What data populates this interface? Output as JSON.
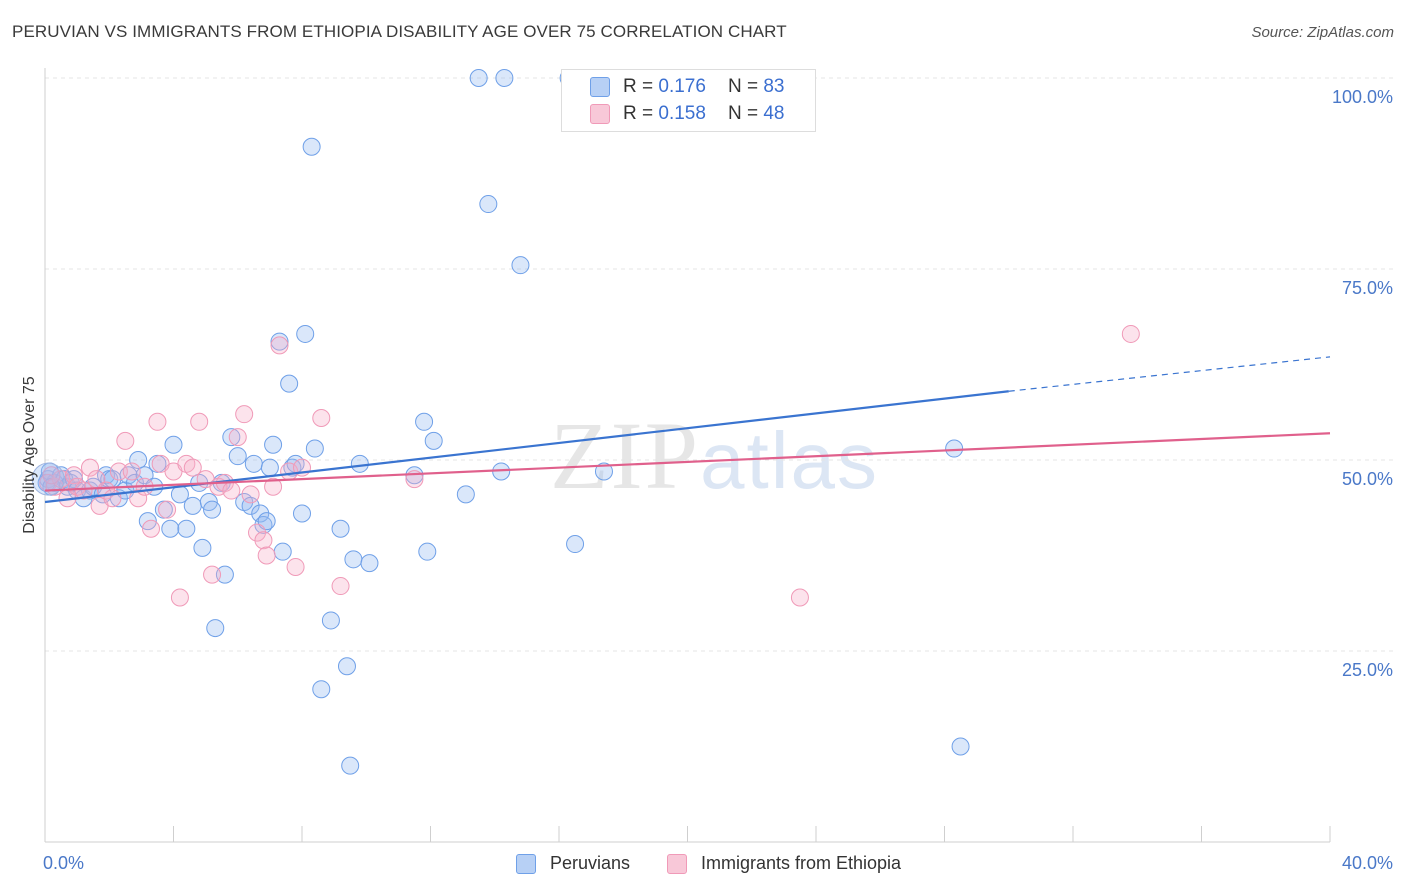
{
  "title": "PERUVIAN VS IMMIGRANTS FROM ETHIOPIA DISABILITY AGE OVER 75 CORRELATION CHART",
  "source": "Source: ZipAtlas.com",
  "watermark": {
    "zip": "ZIP",
    "atlas": "atlas"
  },
  "legend": {
    "rows": [
      {
        "r_label": "R =",
        "r_value": "0.176",
        "n_label": "N =",
        "n_value": "83",
        "color": "#6fa0e8",
        "fill": "#b7d0f5"
      },
      {
        "r_label": "R =",
        "r_value": "0.158",
        "n_label": "N =",
        "n_value": "48",
        "color": "#f09ab8",
        "fill": "#f8c8d8"
      }
    ]
  },
  "bottom_legend": [
    {
      "label": "Peruvians",
      "color": "#6fa0e8",
      "fill": "#b7d0f5"
    },
    {
      "label": "Immigrants from Ethiopia",
      "color": "#f09ab8",
      "fill": "#f8c8d8"
    }
  ],
  "chart_data": {
    "type": "scatter",
    "title": "PERUVIAN VS IMMIGRANTS FROM ETHIOPIA DISABILITY AGE OVER 75 CORRELATION CHART",
    "xlabel": "",
    "ylabel": "Disability Age Over 75",
    "xlim": [
      0,
      40
    ],
    "ylim": [
      0,
      100
    ],
    "x_tick_labels": [
      "0.0%",
      "40.0%"
    ],
    "y_tick_labels": [
      "100.0%",
      "75.0%",
      "50.0%",
      "25.0%"
    ],
    "y_ticks": [
      100,
      75,
      50,
      25
    ],
    "grid": true,
    "legend_position": "top-center",
    "series": [
      {
        "name": "Peruvians",
        "color": "#3a74d0",
        "trend": {
          "x0": 0,
          "y0": 44.5,
          "x1": 30,
          "y1": 59,
          "x_dash_end": 40,
          "y_dash_end": 63.5
        },
        "points": [
          [
            0.1,
            47.5
          ],
          [
            0.3,
            47
          ],
          [
            0.5,
            48
          ],
          [
            0.6,
            47.5
          ],
          [
            0.7,
            46.5
          ],
          [
            0.8,
            47
          ],
          [
            0.9,
            47.5
          ],
          [
            1.0,
            46
          ],
          [
            1.2,
            45
          ],
          [
            1.4,
            46
          ],
          [
            1.5,
            46.5
          ],
          [
            1.8,
            45.5
          ],
          [
            1.9,
            48
          ],
          [
            2.0,
            47.5
          ],
          [
            2.1,
            47.5
          ],
          [
            2.3,
            45
          ],
          [
            2.5,
            46
          ],
          [
            2.6,
            48
          ],
          [
            2.8,
            47
          ],
          [
            2.9,
            50
          ],
          [
            3.1,
            48
          ],
          [
            3.2,
            42
          ],
          [
            3.4,
            46.5
          ],
          [
            3.5,
            49.5
          ],
          [
            3.7,
            43.5
          ],
          [
            3.9,
            41
          ],
          [
            4.0,
            52
          ],
          [
            4.2,
            45.5
          ],
          [
            4.4,
            41
          ],
          [
            4.6,
            44
          ],
          [
            4.8,
            47
          ],
          [
            4.9,
            38.5
          ],
          [
            5.1,
            44.5
          ],
          [
            5.2,
            43.5
          ],
          [
            5.3,
            28
          ],
          [
            5.5,
            47
          ],
          [
            5.6,
            35
          ],
          [
            5.8,
            53
          ],
          [
            6.0,
            50.5
          ],
          [
            6.2,
            44.5
          ],
          [
            6.4,
            44
          ],
          [
            6.5,
            49.5
          ],
          [
            6.7,
            43
          ],
          [
            6.8,
            41.5
          ],
          [
            6.9,
            42
          ],
          [
            7.0,
            49
          ],
          [
            7.1,
            52
          ],
          [
            7.3,
            65.5
          ],
          [
            7.4,
            38
          ],
          [
            7.6,
            60
          ],
          [
            7.7,
            49
          ],
          [
            7.8,
            49.5
          ],
          [
            8.0,
            43
          ],
          [
            8.1,
            66.5
          ],
          [
            8.3,
            91
          ],
          [
            8.4,
            51.5
          ],
          [
            8.6,
            20
          ],
          [
            8.9,
            29
          ],
          [
            9.2,
            41
          ],
          [
            9.4,
            23
          ],
          [
            9.5,
            10
          ],
          [
            9.6,
            37
          ],
          [
            9.8,
            49.5
          ],
          [
            10.1,
            36.5
          ],
          [
            11.5,
            48
          ],
          [
            11.8,
            55
          ],
          [
            11.9,
            38
          ],
          [
            12.1,
            52.5
          ],
          [
            13.1,
            45.5
          ],
          [
            13.5,
            100
          ],
          [
            13.8,
            83.5
          ],
          [
            14.2,
            48.5
          ],
          [
            14.3,
            100
          ],
          [
            14.8,
            75.5
          ],
          [
            16.3,
            100
          ],
          [
            16.5,
            39
          ],
          [
            17.4,
            48.5
          ],
          [
            18.5,
            100
          ],
          [
            28.3,
            51.5
          ],
          [
            28.5,
            12.5
          ],
          [
            0.05,
            47
          ],
          [
            0.15,
            48.5
          ],
          [
            0.2,
            46.5
          ]
        ]
      },
      {
        "name": "Immigrants from Ethiopia",
        "color": "#e0608c",
        "trend": {
          "x0": 0,
          "y0": 46,
          "x1": 40,
          "y1": 53.5
        },
        "points": [
          [
            0.1,
            47
          ],
          [
            0.3,
            46.5
          ],
          [
            0.5,
            47.5
          ],
          [
            0.7,
            45
          ],
          [
            0.9,
            48
          ],
          [
            1.0,
            46.5
          ],
          [
            1.2,
            46
          ],
          [
            1.4,
            49
          ],
          [
            1.6,
            47.5
          ],
          [
            1.7,
            44
          ],
          [
            1.9,
            46
          ],
          [
            2.1,
            45
          ],
          [
            2.3,
            48.5
          ],
          [
            2.5,
            52.5
          ],
          [
            2.7,
            48.5
          ],
          [
            2.9,
            45
          ],
          [
            3.1,
            46.5
          ],
          [
            3.3,
            41
          ],
          [
            3.5,
            55
          ],
          [
            3.6,
            49.5
          ],
          [
            3.8,
            43.5
          ],
          [
            4.0,
            48.5
          ],
          [
            4.2,
            32
          ],
          [
            4.4,
            49.5
          ],
          [
            4.6,
            49
          ],
          [
            4.8,
            55
          ],
          [
            5.0,
            47.5
          ],
          [
            5.2,
            35
          ],
          [
            5.4,
            46.5
          ],
          [
            5.6,
            47
          ],
          [
            5.8,
            46
          ],
          [
            6.0,
            53
          ],
          [
            6.2,
            56
          ],
          [
            6.4,
            45.5
          ],
          [
            6.6,
            40.5
          ],
          [
            6.8,
            39.5
          ],
          [
            6.9,
            37.5
          ],
          [
            7.1,
            46.5
          ],
          [
            7.3,
            65
          ],
          [
            7.6,
            48.5
          ],
          [
            7.8,
            36
          ],
          [
            8.0,
            49
          ],
          [
            8.6,
            55.5
          ],
          [
            9.2,
            33.5
          ],
          [
            11.5,
            47.5
          ],
          [
            23.5,
            32
          ],
          [
            33.8,
            66.5
          ],
          [
            0.2,
            48
          ]
        ]
      }
    ]
  }
}
